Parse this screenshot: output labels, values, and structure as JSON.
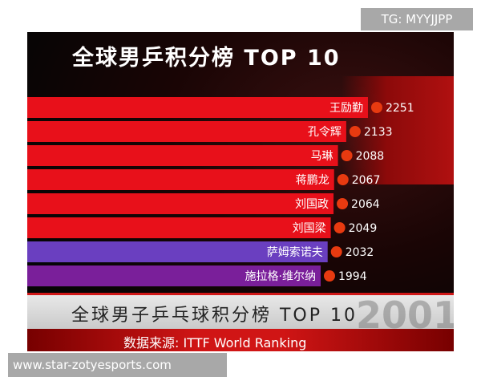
{
  "watermark_top": "TG: MYYJJPP",
  "watermark_bottom": "www.star-zotyesports.com",
  "chart_data": {
    "type": "bar",
    "orientation": "horizontal",
    "title": "全球男乒积分榜 TOP 10",
    "subtitle": "全球男子乒乓球积分榜 TOP 10",
    "source": "数据来源: ITTF World Ranking",
    "year": "2001",
    "xlim": [
      400,
      2300
    ],
    "categories": [
      "王励勤",
      "孔令辉",
      "马琳",
      "蒋鹏龙",
      "刘国政",
      "刘国梁",
      "萨姆索诺夫",
      "施拉格·维尔纳"
    ],
    "values": [
      2251,
      2133,
      2088,
      2067,
      2064,
      2049,
      2032,
      1994
    ],
    "colors": [
      "#e8101a",
      "#e8101a",
      "#e8101a",
      "#e8101a",
      "#e8101a",
      "#e8101a",
      "#6a3fc0",
      "#7a1f9a"
    ]
  }
}
